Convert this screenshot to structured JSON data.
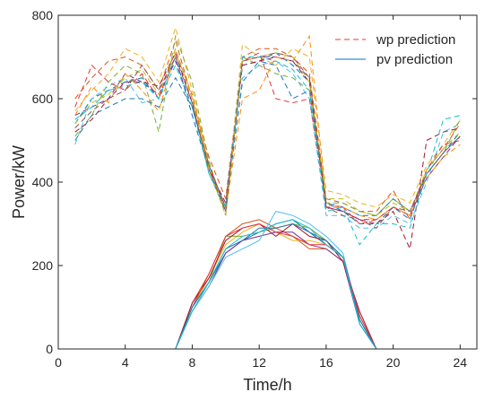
{
  "chart_data": {
    "type": "line",
    "title": "",
    "xlabel": "Time/h",
    "ylabel": "Power/kW",
    "xlim": [
      0,
      25
    ],
    "ylim": [
      0,
      800
    ],
    "xticks": [
      0,
      4,
      8,
      12,
      16,
      20,
      24
    ],
    "yticks": [
      0,
      200,
      400,
      600,
      800
    ],
    "x": [
      1,
      2,
      3,
      4,
      5,
      6,
      7,
      8,
      9,
      10,
      11,
      12,
      13,
      14,
      15,
      16,
      17,
      18,
      19,
      20,
      21,
      22,
      23,
      24
    ],
    "grid": false,
    "legend_position": "top-right",
    "legend": [
      {
        "label": "wp prediction",
        "style": "dashed",
        "color": "#e8343a"
      },
      {
        "label": "pv prediction",
        "style": "solid",
        "color": "#0072bd"
      }
    ],
    "wp_series": [
      {
        "color": "#0072bd",
        "values": [
          540,
          600,
          620,
          640,
          650,
          600,
          700,
          560,
          430,
          340,
          680,
          690,
          710,
          680,
          640,
          350,
          340,
          320,
          320,
          360,
          330,
          420,
          470,
          520
        ]
      },
      {
        "color": "#d95319",
        "values": [
          600,
          650,
          690,
          700,
          680,
          620,
          740,
          600,
          460,
          360,
          700,
          720,
          720,
          700,
          660,
          360,
          350,
          330,
          330,
          380,
          310,
          430,
          480,
          540
        ]
      },
      {
        "color": "#edb120",
        "values": [
          570,
          620,
          660,
          720,
          700,
          640,
          770,
          620,
          450,
          330,
          730,
          700,
          680,
          720,
          700,
          380,
          370,
          350,
          340,
          370,
          350,
          440,
          490,
          550
        ]
      },
      {
        "color": "#7e2f8e",
        "values": [
          560,
          580,
          600,
          660,
          640,
          610,
          690,
          580,
          440,
          330,
          690,
          700,
          700,
          690,
          650,
          340,
          330,
          310,
          310,
          340,
          320,
          410,
          460,
          510
        ]
      },
      {
        "color": "#77ac30",
        "values": [
          510,
          560,
          640,
          680,
          660,
          520,
          750,
          640,
          450,
          320,
          700,
          680,
          660,
          650,
          620,
          350,
          350,
          330,
          320,
          360,
          330,
          420,
          470,
          550
        ]
      },
      {
        "color": "#4dbeee",
        "values": [
          490,
          600,
          630,
          650,
          590,
          600,
          700,
          590,
          420,
          330,
          650,
          680,
          690,
          660,
          600,
          320,
          320,
          290,
          290,
          320,
          300,
          400,
          520,
          540
        ]
      },
      {
        "color": "#a2142f",
        "values": [
          520,
          550,
          600,
          640,
          640,
          630,
          710,
          590,
          430,
          350,
          680,
          690,
          700,
          690,
          640,
          340,
          330,
          310,
          300,
          330,
          240,
          500,
          520,
          530
        ]
      },
      {
        "color": "#e8343a",
        "values": [
          580,
          680,
          640,
          620,
          660,
          600,
          720,
          600,
          440,
          340,
          690,
          710,
          600,
          590,
          600,
          340,
          340,
          300,
          310,
          340,
          320,
          430,
          490,
          500
        ]
      },
      {
        "color": "#ff8c00",
        "values": [
          560,
          630,
          590,
          660,
          620,
          570,
          710,
          610,
          440,
          330,
          600,
          620,
          700,
          690,
          750,
          350,
          340,
          320,
          310,
          340,
          320,
          410,
          460,
          490
        ]
      },
      {
        "color": "#1f77b4",
        "values": [
          500,
          560,
          580,
          600,
          600,
          580,
          650,
          580,
          440,
          340,
          640,
          690,
          680,
          600,
          620,
          350,
          330,
          300,
          300,
          340,
          310,
          420,
          470,
          510
        ]
      },
      {
        "color": "#bcbd22",
        "values": [
          540,
          590,
          610,
          650,
          670,
          610,
          720,
          600,
          430,
          320,
          690,
          700,
          710,
          700,
          640,
          360,
          360,
          330,
          320,
          350,
          330,
          430,
          480,
          520
        ]
      },
      {
        "color": "#17becf",
        "values": [
          550,
          580,
          620,
          630,
          640,
          600,
          680,
          580,
          420,
          340,
          700,
          700,
          690,
          670,
          620,
          330,
          340,
          250,
          300,
          300,
          290,
          420,
          550,
          560
        ]
      },
      {
        "color": "#8c564b",
        "values": [
          530,
          570,
          600,
          620,
          680,
          620,
          700,
          590,
          430,
          330,
          690,
          700,
          710,
          700,
          650,
          340,
          320,
          310,
          290,
          340,
          330,
          420,
          470,
          510
        ]
      }
    ],
    "pv_series": [
      {
        "color": "#0072bd",
        "values": [
          0,
          0,
          0,
          0,
          0,
          0,
          0,
          100,
          160,
          230,
          260,
          280,
          300,
          310,
          280,
          250,
          220,
          60,
          0,
          0,
          0,
          0,
          0,
          0
        ]
      },
      {
        "color": "#d95319",
        "values": [
          0,
          0,
          0,
          0,
          0,
          0,
          0,
          110,
          180,
          270,
          300,
          310,
          290,
          270,
          240,
          240,
          210,
          80,
          0,
          0,
          0,
          0,
          0,
          0
        ]
      },
      {
        "color": "#edb120",
        "values": [
          0,
          0,
          0,
          0,
          0,
          0,
          0,
          100,
          170,
          250,
          280,
          300,
          280,
          260,
          260,
          250,
          220,
          70,
          0,
          0,
          0,
          0,
          0,
          0
        ]
      },
      {
        "color": "#7e2f8e",
        "values": [
          0,
          0,
          0,
          0,
          0,
          0,
          0,
          90,
          150,
          230,
          260,
          270,
          280,
          280,
          250,
          240,
          210,
          60,
          0,
          0,
          0,
          0,
          0,
          0
        ]
      },
      {
        "color": "#77ac30",
        "values": [
          0,
          0,
          0,
          0,
          0,
          0,
          0,
          100,
          160,
          270,
          270,
          280,
          290,
          300,
          290,
          260,
          220,
          80,
          0,
          0,
          0,
          0,
          0,
          0
        ]
      },
      {
        "color": "#4dbeee",
        "values": [
          0,
          0,
          0,
          0,
          0,
          0,
          0,
          90,
          150,
          220,
          240,
          260,
          330,
          320,
          300,
          270,
          230,
          70,
          0,
          0,
          0,
          0,
          0,
          0
        ]
      },
      {
        "color": "#a2142f",
        "values": [
          0,
          0,
          0,
          0,
          0,
          0,
          0,
          110,
          170,
          260,
          290,
          300,
          270,
          300,
          270,
          260,
          210,
          90,
          0,
          0,
          0,
          0,
          0,
          0
        ]
      },
      {
        "color": "#e8343a",
        "values": [
          0,
          0,
          0,
          0,
          0,
          0,
          0,
          100,
          180,
          270,
          290,
          300,
          280,
          270,
          250,
          250,
          220,
          80,
          0,
          0,
          0,
          0,
          0,
          0
        ]
      },
      {
        "color": "#1f77b4",
        "values": [
          0,
          0,
          0,
          0,
          0,
          0,
          0,
          100,
          160,
          240,
          260,
          290,
          290,
          300,
          280,
          260,
          220,
          70,
          0,
          0,
          0,
          0,
          0,
          0
        ]
      },
      {
        "color": "#17becf",
        "values": [
          0,
          0,
          0,
          0,
          0,
          0,
          0,
          90,
          160,
          240,
          270,
          280,
          300,
          310,
          290,
          250,
          220,
          60,
          0,
          0,
          0,
          0,
          0,
          0
        ]
      }
    ]
  }
}
